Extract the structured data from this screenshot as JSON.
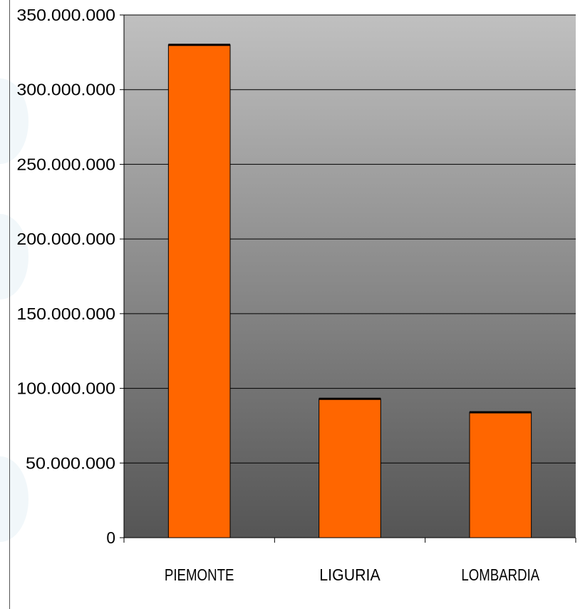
{
  "chart_data": {
    "type": "bar",
    "categories": [
      "PIEMONTE",
      "LIGURIA",
      "LOMBARDIA"
    ],
    "series": [
      {
        "values": [
          330000000,
          93000000,
          84000000
        ]
      }
    ],
    "title": "",
    "xlabel": "",
    "ylabel": "",
    "ylim": [
      0,
      350000000
    ],
    "yticks": [
      0,
      50000000,
      100000000,
      150000000,
      200000000,
      250000000,
      300000000,
      350000000
    ],
    "ytick_labels": [
      "0",
      "50.000.000",
      "100.000.000",
      "150.000.000",
      "200.000.000",
      "250.000.000",
      "300.000.000",
      "350.000.000"
    ],
    "grid": true,
    "legend": "none",
    "colors": {
      "bar": "#ff6600",
      "bar_outline": "#000000",
      "plot_bg_top": "#c0c0c0",
      "plot_bg_bottom": "#555555",
      "gridline": "#000000"
    }
  }
}
